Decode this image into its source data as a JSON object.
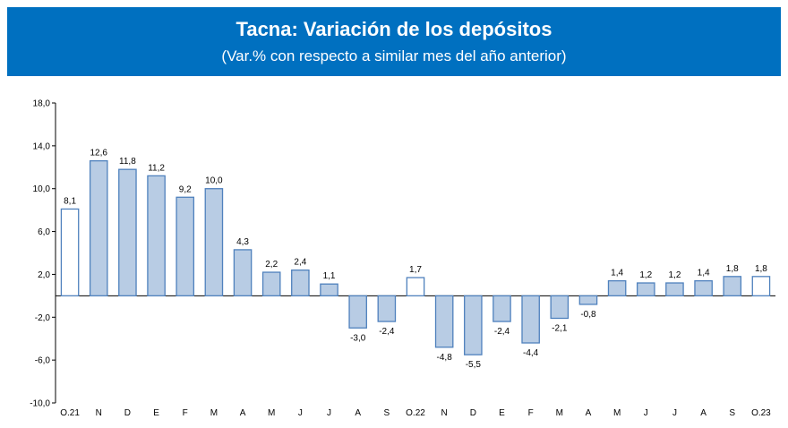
{
  "chart_data": {
    "type": "bar",
    "title": "Tacna: Variación de los depósitos",
    "subtitle": "(Var.% con respecto a similar mes del año anterior)",
    "categories": [
      "O.21",
      "N",
      "D",
      "E",
      "F",
      "M",
      "A",
      "M",
      "J",
      "J",
      "A",
      "S",
      "O.22",
      "N",
      "D",
      "E",
      "F",
      "M",
      "A",
      "M",
      "J",
      "J",
      "A",
      "S",
      "O.23"
    ],
    "values": [
      8.1,
      12.6,
      11.8,
      11.2,
      9.2,
      10.0,
      4.3,
      2.2,
      2.4,
      1.1,
      -3.0,
      -2.4,
      1.7,
      -4.8,
      -5.5,
      -2.4,
      -4.4,
      -2.1,
      -0.8,
      1.4,
      1.2,
      1.2,
      1.4,
      1.8,
      1.8
    ],
    "value_labels": [
      "8,1",
      "12,6",
      "11,8",
      "11,2",
      "9,2",
      "10,0",
      "4,3",
      "2,2",
      "2,4",
      "1,1",
      "-3,0",
      "-2,4",
      "1,7",
      "-4,8",
      "-5,5",
      "-2,4",
      "-4,4",
      "-2,1",
      "-0,8",
      "1,4",
      "1,2",
      "1,2",
      "1,4",
      "1,8",
      "1,8"
    ],
    "colors": [
      "#ffffff",
      "#b8cce4",
      "#b8cce4",
      "#b8cce4",
      "#b8cce4",
      "#b8cce4",
      "#b8cce4",
      "#b8cce4",
      "#b8cce4",
      "#b8cce4",
      "#b8cce4",
      "#b8cce4",
      "#ffffff",
      "#b8cce4",
      "#b8cce4",
      "#b8cce4",
      "#b8cce4",
      "#b8cce4",
      "#b8cce4",
      "#b8cce4",
      "#b8cce4",
      "#b8cce4",
      "#b8cce4",
      "#b8cce4",
      "#ffffff"
    ],
    "edge_color": "#4f81bd",
    "ylim": [
      -10,
      18
    ],
    "yticks": [
      {
        "value": -10,
        "label": "-10,0"
      },
      {
        "value": -6,
        "label": "-6,0"
      },
      {
        "value": -2,
        "label": "-2,0"
      },
      {
        "value": 2,
        "label": "2,0"
      },
      {
        "value": 6,
        "label": "6,0"
      },
      {
        "value": 10,
        "label": "10,0"
      },
      {
        "value": 14,
        "label": "14,0"
      },
      {
        "value": 18,
        "label": "18,0"
      }
    ],
    "grid": false
  }
}
